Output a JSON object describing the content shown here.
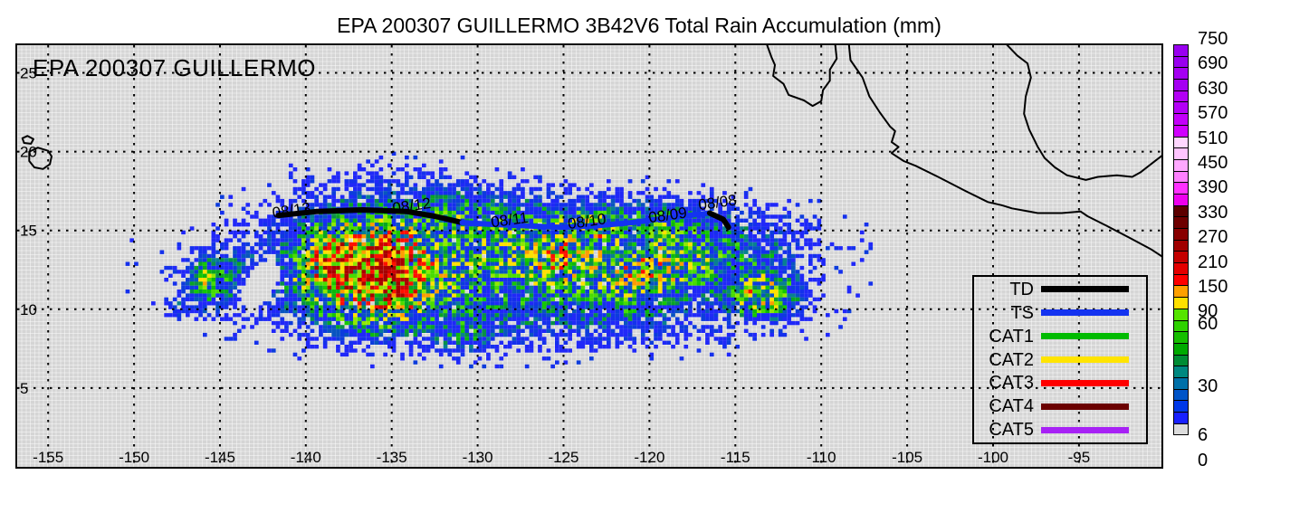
{
  "title": "EPA 200307 GUILLERMO 3B42V6 Total Rain Accumulation (mm)",
  "inset_label": "EPA 200307 GUILLERMO",
  "legend": {
    "entries": [
      {
        "label": "TD",
        "color": "#000000"
      },
      {
        "label": "TS",
        "color": "#1433F0"
      },
      {
        "label": "CAT1",
        "color": "#00BB00"
      },
      {
        "label": "CAT2",
        "color": "#FFE400"
      },
      {
        "label": "CAT3",
        "color": "#FF0000"
      },
      {
        "label": "CAT4",
        "color": "#6B0000"
      },
      {
        "label": "CAT5",
        "color": "#A722F5"
      }
    ]
  },
  "colorbar": {
    "cells": [
      "#9900F0",
      "#9900F0",
      "#A500F2",
      "#A500F2",
      "#B300F6",
      "#B300F6",
      "#C300FA",
      "#D000FF",
      "#FFD7FF",
      "#FFC4FF",
      "#FFA8FF",
      "#FF80FF",
      "#FF30FF",
      "#EE00EE",
      "#5C0000",
      "#6E0000",
      "#880000",
      "#A00000",
      "#C40000",
      "#E40000",
      "#FF0000",
      "#FFA000",
      "#FFE000",
      "#55E400",
      "#2ED200",
      "#16BE00",
      "#00AA00",
      "#008C34",
      "#008880",
      "#0070A8",
      "#0054C8",
      "#0038E8",
      "#1820FF",
      "#DCDCDC"
    ],
    "labels": [
      {
        "text": "750",
        "boundary": 0
      },
      {
        "text": "690",
        "boundary": 2
      },
      {
        "text": "630",
        "boundary": 4
      },
      {
        "text": "570",
        "boundary": 6
      },
      {
        "text": "510",
        "boundary": 8
      },
      {
        "text": "450",
        "boundary": 10
      },
      {
        "text": "390",
        "boundary": 12
      },
      {
        "text": "330",
        "boundary": 14
      },
      {
        "text": "270",
        "boundary": 16
      },
      {
        "text": "210",
        "boundary": 18
      },
      {
        "text": "150",
        "boundary": 20
      },
      {
        "text": "90",
        "boundary": 22
      },
      {
        "text": "60",
        "boundary": 23
      },
      {
        "text": "30",
        "boundary": 28
      },
      {
        "text": "6",
        "boundary": 32
      },
      {
        "text": "0",
        "boundary": 34
      }
    ]
  },
  "chart_data": {
    "type": "heatmap",
    "title": "EPA 200307 GUILLERMO 3B42V6 Total Rain Accumulation (mm)",
    "units": "mm",
    "axes": {
      "lon_min": -156.8,
      "lon_max": -90.2,
      "lat_min": 0.0,
      "lat_max": 26.75,
      "x_ticks": [
        -155,
        -150,
        -145,
        -140,
        -135,
        -130,
        -125,
        -120,
        -115,
        -110,
        -105,
        -100,
        -95
      ],
      "y_ticks": [
        25,
        20,
        15,
        10,
        5
      ],
      "grid": true
    },
    "grid_step_deg": 0.25,
    "noise_seed": 20030807,
    "rain_extent": {
      "lon": [
        -150.5,
        -106.25
      ],
      "lat": [
        4.0,
        21.75
      ]
    },
    "value_colors": [
      [
        270,
        "#A80000"
      ],
      [
        210,
        "#D00000"
      ],
      [
        150,
        "#FF1000"
      ],
      [
        120,
        "#FF9C00"
      ],
      [
        90,
        "#FFE000"
      ],
      [
        75,
        "#90E800"
      ],
      [
        60,
        "#48DC00"
      ],
      [
        54,
        "#14C800"
      ],
      [
        48,
        "#0CB80C"
      ],
      [
        42,
        "#08A424"
      ],
      [
        36,
        "#089048"
      ],
      [
        30,
        "#088090"
      ],
      [
        24,
        "#0854C0"
      ],
      [
        18,
        "#0C3CDC"
      ],
      [
        12,
        "#1430EC"
      ],
      [
        6,
        "#2028F8"
      ]
    ],
    "rain_blobs": [
      {
        "lon": -128.5,
        "lat": 12.4,
        "sx": 11.5,
        "sy": 3.1,
        "amp": 46
      },
      {
        "lon": -127.5,
        "lat": 15.3,
        "sx": 10.0,
        "sy": 1.7,
        "amp": 26
      },
      {
        "lon": -137.8,
        "lat": 12.7,
        "sx": 1.7,
        "sy": 1.5,
        "amp": 190
      },
      {
        "lon": -134.9,
        "lat": 12.4,
        "sx": 1.5,
        "sy": 1.8,
        "amp": 210
      },
      {
        "lon": -136.4,
        "lat": 12.4,
        "sx": 3.5,
        "sy": 2.5,
        "amp": 80
      },
      {
        "lon": -125.4,
        "lat": 13.2,
        "sx": 2.0,
        "sy": 1.3,
        "amp": 58
      },
      {
        "lon": -123.3,
        "lat": 15.2,
        "sx": 1.6,
        "sy": 1.0,
        "amp": 46
      },
      {
        "lon": -120.5,
        "lat": 12.0,
        "sx": 2.4,
        "sy": 1.8,
        "amp": 58
      },
      {
        "lon": -113.4,
        "lat": 10.9,
        "sx": 1.6,
        "sy": 1.2,
        "amp": 85
      },
      {
        "lon": -134.5,
        "lat": 17.6,
        "sx": 5.5,
        "sy": 1.5,
        "amp": 10
      },
      {
        "lon": -113.6,
        "lat": 13.2,
        "sx": 2.4,
        "sy": 2.2,
        "amp": 16
      },
      {
        "lon": -145.7,
        "lat": 11.6,
        "sx": 0.9,
        "sy": 1.2,
        "amp": 55
      },
      {
        "lon": -143.8,
        "lat": 11.8,
        "sx": 2.4,
        "sy": 1.8,
        "amp": 20
      },
      {
        "lon": -147.4,
        "lat": 10.1,
        "sx": 0.8,
        "sy": 0.7,
        "amp": 14
      },
      {
        "lon": -130.8,
        "lat": 8.3,
        "sx": 1.6,
        "sy": 1.1,
        "amp": 20
      },
      {
        "lon": -124.0,
        "lat": 8.8,
        "sx": 9.0,
        "sy": 1.2,
        "amp": 8
      },
      {
        "lon": -135.6,
        "lat": 9.6,
        "sx": 3.6,
        "sy": 1.6,
        "amp": 20
      },
      {
        "lon": -142.3,
        "lat": 12.2,
        "sx": 0.8,
        "sy": 0.9,
        "amp": -45
      },
      {
        "lon": -143.1,
        "lat": 11.2,
        "sx": 0.8,
        "sy": 0.9,
        "amp": -45
      },
      {
        "lon": -137.5,
        "lat": 15.2,
        "sx": 3.0,
        "sy": 1.4,
        "amp": 16
      },
      {
        "lon": -131.5,
        "lat": 16.2,
        "sx": 2.0,
        "sy": 1.2,
        "amp": 14
      },
      {
        "lon": -117.5,
        "lat": 13.5,
        "sx": 2.5,
        "sy": 2.0,
        "amp": 30
      },
      {
        "lon": -119.5,
        "lat": 15.5,
        "sx": 2.0,
        "sy": 1.0,
        "amp": 25
      }
    ],
    "track": {
      "segments": [
        {
          "status": "TD",
          "color": "#000000",
          "points": [
            [
              -141.6,
              15.95
            ],
            [
              -139.4,
              16.2
            ],
            [
              -136.7,
              16.3
            ],
            [
              -134.1,
              16.2
            ],
            [
              -132.5,
              15.9
            ],
            [
              -130.9,
              15.5
            ]
          ]
        },
        {
          "status": "TS",
          "color": "#1433F0",
          "points": [
            [
              -130.9,
              15.5
            ],
            [
              -129.4,
              15.4
            ],
            [
              -127.3,
              15.3
            ],
            [
              -125.2,
              15.2
            ],
            [
              -123.1,
              15.3
            ],
            [
              -121.0,
              15.5
            ],
            [
              -118.9,
              15.8
            ],
            [
              -117.3,
              16.0
            ],
            [
              -116.5,
              16.1
            ]
          ]
        },
        {
          "status": "TD",
          "color": "#000000",
          "points": [
            [
              -116.5,
              16.1
            ],
            [
              -115.7,
              15.7
            ],
            [
              -115.4,
              15.2
            ]
          ]
        }
      ],
      "labels": [
        {
          "text": "08/13",
          "lon": -140.8,
          "lat": 16.3
        },
        {
          "text": "08/12",
          "lon": -133.8,
          "lat": 16.6
        },
        {
          "text": "08/11",
          "lon": -128.1,
          "lat": 15.7
        },
        {
          "text": "08/10",
          "lon": -123.6,
          "lat": 15.6
        },
        {
          "text": "08/09",
          "lon": -118.9,
          "lat": 16.0
        },
        {
          "text": "08/08",
          "lon": -116.0,
          "lat": 16.8
        }
      ]
    },
    "coastlines": [
      {
        "name": "baja-california",
        "closed": false,
        "points": [
          [
            -113.2,
            26.9
          ],
          [
            -112.9,
            26.0
          ],
          [
            -112.7,
            25.5
          ],
          [
            -112.8,
            24.8
          ],
          [
            -112.2,
            24.3
          ],
          [
            -111.9,
            23.6
          ],
          [
            -111.0,
            23.25
          ],
          [
            -110.5,
            22.9
          ],
          [
            -110.0,
            23.2
          ],
          [
            -109.9,
            23.9
          ],
          [
            -109.5,
            24.5
          ],
          [
            -109.5,
            25.2
          ],
          [
            -109.1,
            25.9
          ],
          [
            -109.2,
            26.9
          ]
        ]
      },
      {
        "name": "mexico-pacific-coast",
        "closed": false,
        "points": [
          [
            -108.4,
            26.9
          ],
          [
            -108.3,
            25.8
          ],
          [
            -107.6,
            24.7
          ],
          [
            -107.2,
            23.5
          ],
          [
            -106.6,
            22.5
          ],
          [
            -106.0,
            21.6
          ],
          [
            -105.7,
            21.3
          ],
          [
            -105.9,
            20.6
          ],
          [
            -105.5,
            20.3
          ],
          [
            -105.9,
            19.9
          ],
          [
            -105.2,
            19.4
          ],
          [
            -104.5,
            19.1
          ],
          [
            -103.2,
            18.4
          ],
          [
            -101.6,
            17.5
          ],
          [
            -100.3,
            16.8
          ],
          [
            -99.5,
            16.6
          ],
          [
            -98.9,
            16.4
          ],
          [
            -97.4,
            16.1
          ],
          [
            -96.0,
            16.1
          ],
          [
            -94.9,
            16.2
          ],
          [
            -94.5,
            15.9
          ],
          [
            -93.4,
            15.3
          ],
          [
            -92.0,
            14.5
          ],
          [
            -90.8,
            13.8
          ],
          [
            -90.1,
            13.3
          ]
        ]
      },
      {
        "name": "gulf-of-mexico-coast",
        "closed": false,
        "points": [
          [
            -99.3,
            26.9
          ],
          [
            -98.6,
            26.1
          ],
          [
            -98.0,
            25.6
          ],
          [
            -97.8,
            24.7
          ],
          [
            -98.1,
            23.5
          ],
          [
            -98.2,
            22.4
          ],
          [
            -97.9,
            21.4
          ],
          [
            -97.4,
            20.3
          ],
          [
            -97.0,
            19.6
          ],
          [
            -96.4,
            19.0
          ],
          [
            -95.7,
            18.5
          ],
          [
            -94.6,
            18.2
          ],
          [
            -93.9,
            18.4
          ],
          [
            -92.8,
            18.5
          ],
          [
            -91.9,
            18.4
          ],
          [
            -91.4,
            18.7
          ],
          [
            -90.7,
            19.3
          ],
          [
            -90.1,
            19.8
          ]
        ]
      },
      {
        "name": "hawaii-big-island",
        "closed": true,
        "points": [
          [
            -156.1,
            20.0
          ],
          [
            -155.6,
            20.25
          ],
          [
            -155.0,
            20.05
          ],
          [
            -154.8,
            19.7
          ],
          [
            -154.9,
            19.2
          ],
          [
            -155.3,
            18.9
          ],
          [
            -155.8,
            19.0
          ],
          [
            -156.1,
            19.4
          ]
        ]
      },
      {
        "name": "maui",
        "closed": true,
        "points": [
          [
            -156.5,
            20.85
          ],
          [
            -156.2,
            21.0
          ],
          [
            -155.85,
            20.8
          ],
          [
            -156.0,
            20.5
          ],
          [
            -156.4,
            20.55
          ]
        ]
      }
    ]
  }
}
